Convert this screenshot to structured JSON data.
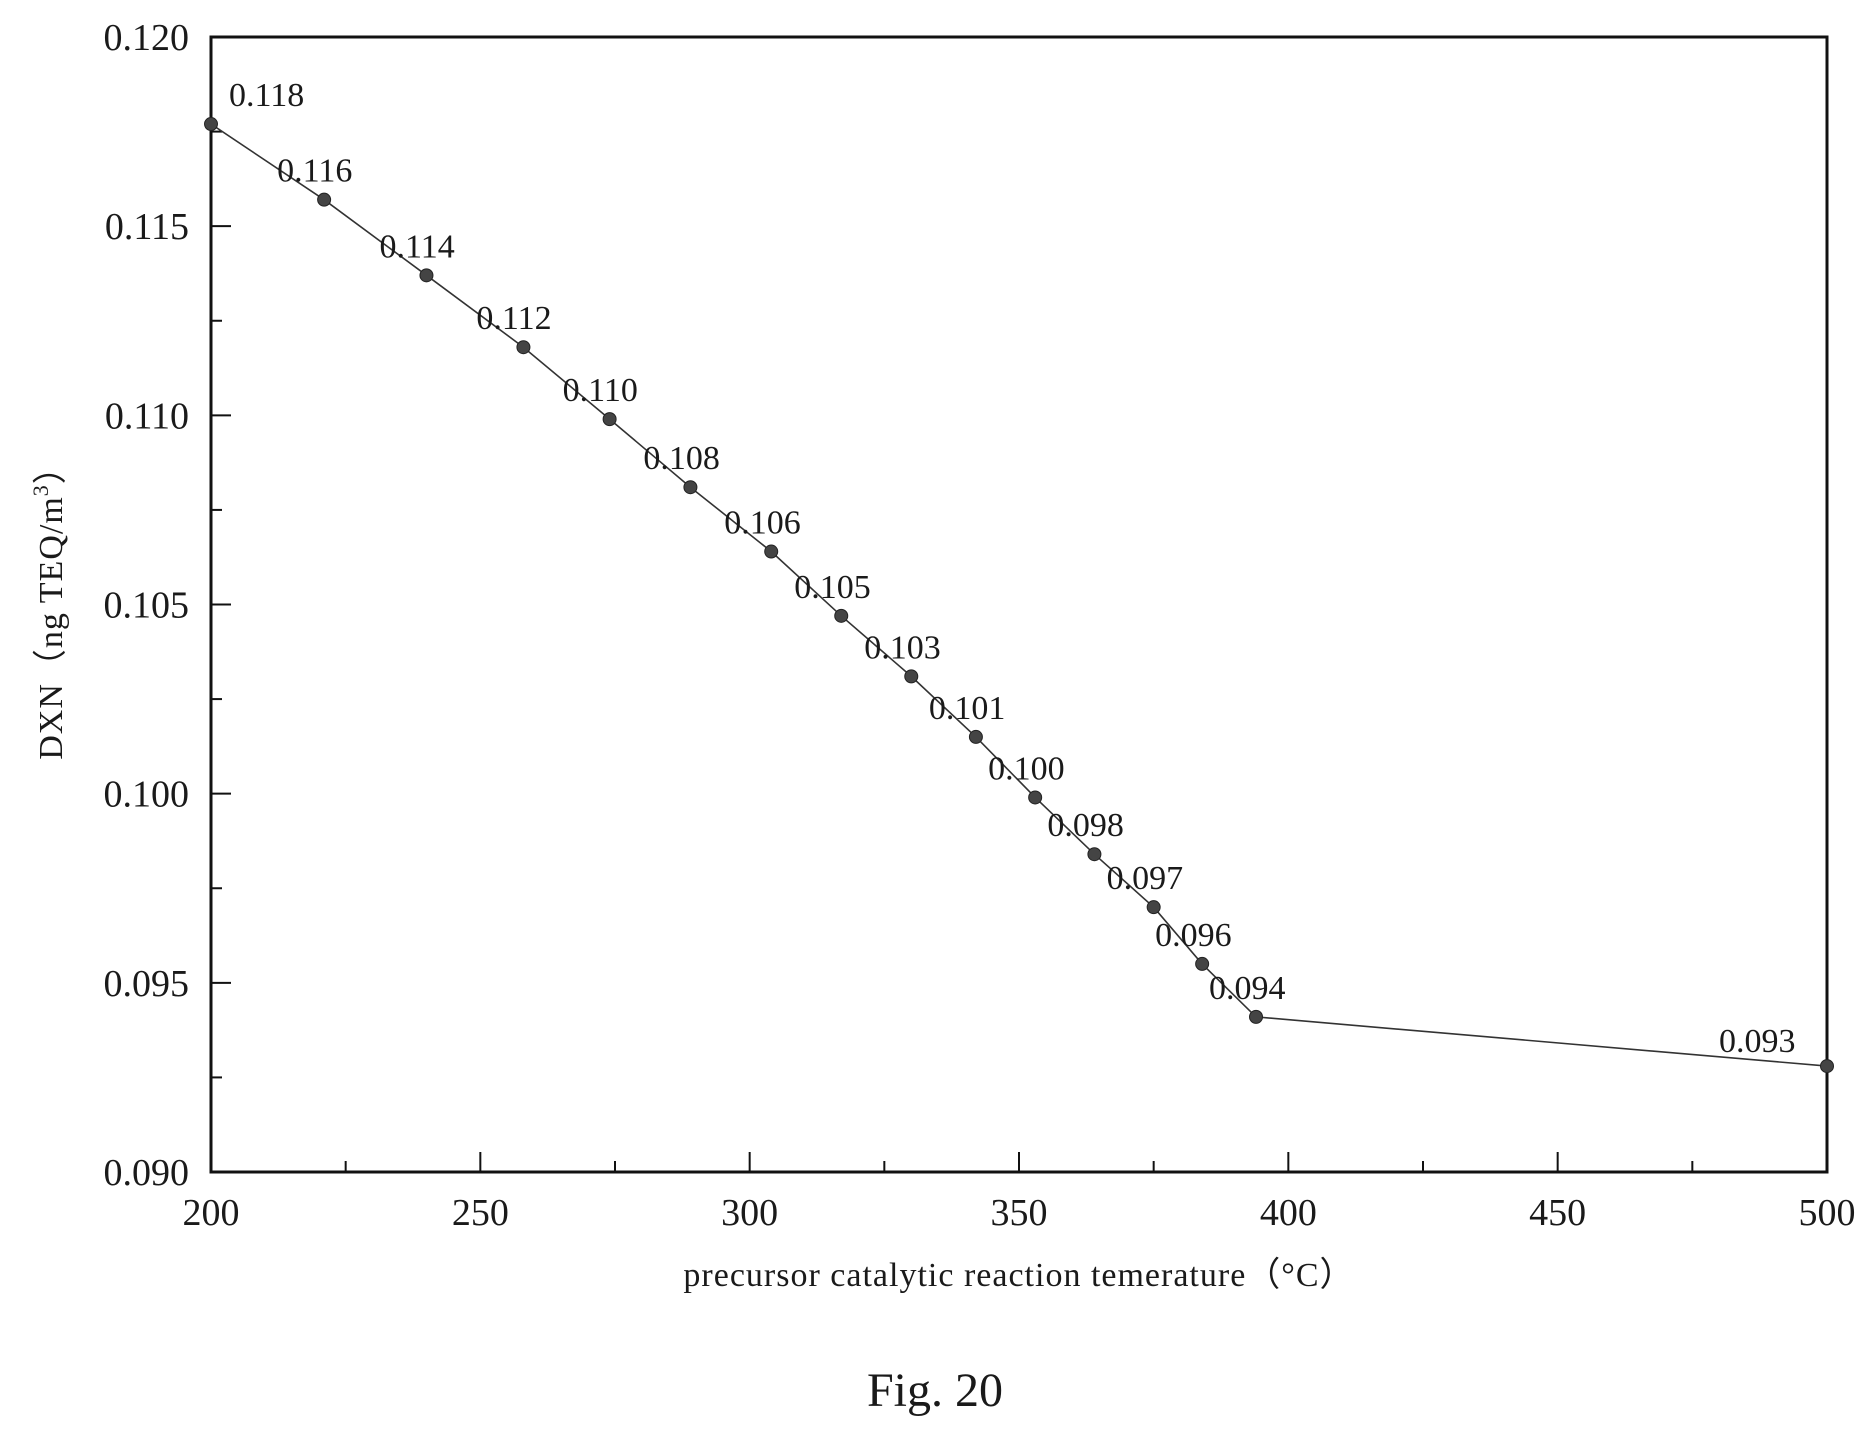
{
  "chart_data": {
    "type": "line",
    "xlabel": "precursor catalytic reaction temerature（°C）",
    "ylabel": "DXN（ng TEQ/m",
    "ylabel_superscript": "3",
    "ylabel_suffix": "）",
    "caption": "Fig. 20",
    "xlim": [
      200,
      500
    ],
    "ylim": [
      0.09,
      0.12
    ],
    "x_ticks": [
      200,
      250,
      300,
      350,
      400,
      450,
      500
    ],
    "x_tick_labels": [
      "200",
      "250",
      "300",
      "350",
      "400",
      "450",
      "500"
    ],
    "y_ticks": [
      0.09,
      0.095,
      0.1,
      0.105,
      0.11,
      0.115,
      0.12
    ],
    "y_tick_labels": [
      "0.090",
      "0.095",
      "0.100",
      "0.105",
      "0.110",
      "0.115",
      "0.120"
    ],
    "grid": false,
    "colors": {
      "line": "#333333",
      "marker": "#444444",
      "text": "#1a1a1a"
    },
    "series": [
      {
        "x": [
          200,
          221,
          240,
          258,
          274,
          289,
          304,
          317,
          330,
          342,
          353,
          364,
          375,
          384,
          394,
          500
        ],
        "values": [
          0.1177,
          0.1157,
          0.1137,
          0.1118,
          0.1099,
          0.1081,
          0.1064,
          0.1047,
          0.1031,
          0.1015,
          0.0999,
          0.0984,
          0.097,
          0.0955,
          0.0941,
          0.0928
        ],
        "labels": [
          "0.118",
          "0.116",
          "0.114",
          "0.112",
          "0.110",
          "0.108",
          "0.106",
          "0.105",
          "0.103",
          "0.101",
          "0.100",
          "0.098",
          "0.097",
          "0.096",
          "0.094",
          "0.093"
        ]
      }
    ]
  }
}
